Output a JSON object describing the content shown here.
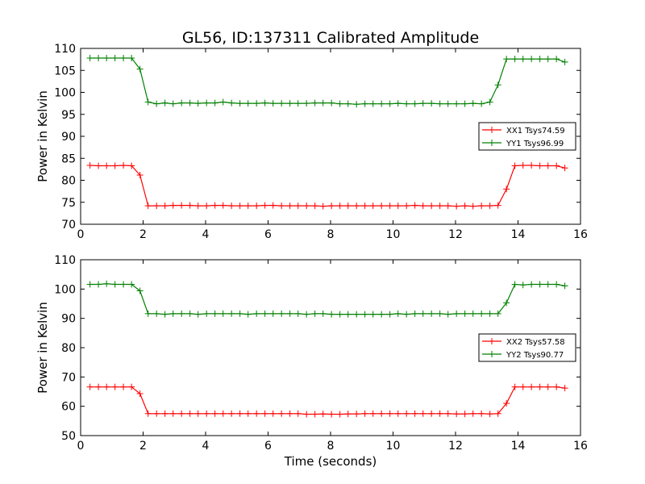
{
  "title": "GL56, ID:137311 Calibrated Amplitude",
  "chart_data": [
    {
      "type": "line",
      "ylabel": "Power in Kelvin",
      "xlabel": "",
      "xlim": [
        0,
        16
      ],
      "ylim": [
        70,
        110
      ],
      "xticks": [
        0,
        2,
        4,
        6,
        8,
        10,
        12,
        14,
        16
      ],
      "yticks": [
        70,
        75,
        80,
        85,
        90,
        95,
        100,
        105,
        110
      ],
      "legend_position": "center-right",
      "x": [
        0.3,
        0.57,
        0.83,
        1.1,
        1.37,
        1.63,
        1.9,
        2.16,
        2.43,
        2.7,
        2.96,
        3.23,
        3.5,
        3.76,
        4.03,
        4.3,
        4.56,
        4.83,
        5.1,
        5.36,
        5.63,
        5.9,
        6.16,
        6.43,
        6.7,
        6.96,
        7.23,
        7.5,
        7.76,
        8.03,
        8.3,
        8.56,
        8.83,
        9.1,
        9.36,
        9.63,
        9.9,
        10.16,
        10.43,
        10.7,
        10.96,
        11.23,
        11.5,
        11.76,
        12.03,
        12.3,
        12.56,
        12.83,
        13.1,
        13.36,
        13.63,
        13.9,
        14.16,
        14.43,
        14.7,
        14.96,
        15.23,
        15.5
      ],
      "series": [
        {
          "name": "XX1 Tsys74.59",
          "color": "#ff0000",
          "values": [
            83.4,
            83.3,
            83.3,
            83.3,
            83.4,
            83.3,
            81.2,
            74.2,
            74.2,
            74.2,
            74.3,
            74.3,
            74.3,
            74.2,
            74.2,
            74.3,
            74.3,
            74.2,
            74.2,
            74.2,
            74.2,
            74.3,
            74.3,
            74.2,
            74.2,
            74.2,
            74.2,
            74.2,
            74.1,
            74.2,
            74.2,
            74.2,
            74.2,
            74.2,
            74.2,
            74.2,
            74.2,
            74.2,
            74.2,
            74.3,
            74.2,
            74.2,
            74.2,
            74.2,
            74.1,
            74.2,
            74.1,
            74.2,
            74.2,
            74.3,
            78.0,
            83.3,
            83.4,
            83.4,
            83.3,
            83.3,
            83.3,
            82.8
          ]
        },
        {
          "name": "YY1 Tsys96.99",
          "color": "#008000",
          "values": [
            107.8,
            107.8,
            107.8,
            107.8,
            107.8,
            107.8,
            105.3,
            97.8,
            97.4,
            97.6,
            97.4,
            97.6,
            97.6,
            97.5,
            97.6,
            97.6,
            97.8,
            97.6,
            97.5,
            97.5,
            97.5,
            97.6,
            97.5,
            97.5,
            97.5,
            97.5,
            97.5,
            97.6,
            97.6,
            97.6,
            97.4,
            97.4,
            97.3,
            97.4,
            97.4,
            97.4,
            97.4,
            97.5,
            97.4,
            97.4,
            97.5,
            97.5,
            97.4,
            97.4,
            97.4,
            97.4,
            97.5,
            97.4,
            97.8,
            101.7,
            107.6,
            107.6,
            107.6,
            107.6,
            107.6,
            107.6,
            107.6,
            106.9
          ]
        }
      ]
    },
    {
      "type": "line",
      "ylabel": "Power in Kelvin",
      "xlabel": "Time (seconds)",
      "xlim": [
        0,
        16
      ],
      "ylim": [
        50,
        110
      ],
      "xticks": [
        0,
        2,
        4,
        6,
        8,
        10,
        12,
        14,
        16
      ],
      "yticks": [
        50,
        60,
        70,
        80,
        90,
        100,
        110
      ],
      "legend_position": "center-right",
      "x": [
        0.3,
        0.57,
        0.83,
        1.1,
        1.37,
        1.63,
        1.9,
        2.16,
        2.43,
        2.7,
        2.96,
        3.23,
        3.5,
        3.76,
        4.03,
        4.3,
        4.56,
        4.83,
        5.1,
        5.36,
        5.63,
        5.9,
        6.16,
        6.43,
        6.7,
        6.96,
        7.23,
        7.5,
        7.76,
        8.03,
        8.3,
        8.56,
        8.83,
        9.1,
        9.36,
        9.63,
        9.9,
        10.16,
        10.43,
        10.7,
        10.96,
        11.23,
        11.5,
        11.76,
        12.03,
        12.3,
        12.56,
        12.83,
        13.1,
        13.36,
        13.63,
        13.9,
        14.16,
        14.43,
        14.7,
        14.96,
        15.23,
        15.5
      ],
      "series": [
        {
          "name": "XX2 Tsys57.58",
          "color": "#ff0000",
          "values": [
            66.6,
            66.6,
            66.6,
            66.6,
            66.6,
            66.6,
            64.3,
            57.5,
            57.5,
            57.5,
            57.5,
            57.5,
            57.5,
            57.5,
            57.5,
            57.5,
            57.5,
            57.5,
            57.5,
            57.5,
            57.5,
            57.5,
            57.5,
            57.5,
            57.5,
            57.5,
            57.3,
            57.3,
            57.4,
            57.3,
            57.3,
            57.4,
            57.4,
            57.5,
            57.5,
            57.5,
            57.5,
            57.5,
            57.5,
            57.5,
            57.5,
            57.5,
            57.5,
            57.5,
            57.4,
            57.4,
            57.5,
            57.5,
            57.4,
            57.5,
            61.0,
            66.6,
            66.6,
            66.6,
            66.6,
            66.6,
            66.6,
            66.2
          ]
        },
        {
          "name": "YY2 Tsys90.77",
          "color": "#008000",
          "values": [
            101.6,
            101.6,
            101.8,
            101.6,
            101.6,
            101.6,
            99.4,
            91.6,
            91.6,
            91.4,
            91.6,
            91.6,
            91.6,
            91.4,
            91.6,
            91.6,
            91.6,
            91.6,
            91.6,
            91.4,
            91.6,
            91.6,
            91.6,
            91.6,
            91.6,
            91.6,
            91.4,
            91.6,
            91.6,
            91.4,
            91.4,
            91.4,
            91.4,
            91.4,
            91.4,
            91.4,
            91.4,
            91.6,
            91.4,
            91.6,
            91.6,
            91.6,
            91.6,
            91.4,
            91.6,
            91.6,
            91.6,
            91.6,
            91.6,
            91.6,
            95.3,
            101.6,
            101.4,
            101.6,
            101.6,
            101.6,
            101.6,
            101.1
          ]
        }
      ]
    }
  ]
}
